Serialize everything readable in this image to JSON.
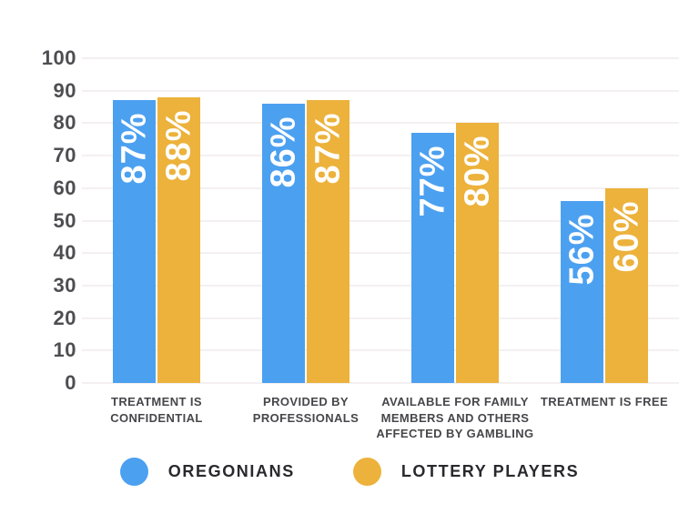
{
  "chart_data": {
    "type": "bar",
    "title": "",
    "xlabel": "",
    "ylabel": "",
    "categories": [
      "TREATMENT IS CONFIDENTIAL",
      "PROVIDED BY PROFESSIONALS",
      "AVAILABLE FOR FAMILY MEMBERS AND OTHERS AFFECTED BY GAMBLING",
      "TREATMENT IS FREE"
    ],
    "series": [
      {
        "name": "OREGONIANS",
        "color": "#4CA0F0",
        "values": [
          87,
          86,
          77,
          56
        ]
      },
      {
        "name": "LOTTERY PLAYERS",
        "color": "#ECB23C",
        "values": [
          88,
          87,
          80,
          60
        ]
      }
    ],
    "bar_labels": [
      [
        "87%",
        "88%"
      ],
      [
        "86%",
        "87%"
      ],
      [
        "77%",
        "80%"
      ],
      [
        "56%",
        "60%"
      ]
    ],
    "value_suffix": "%",
    "ylim": [
      0,
      100
    ],
    "yticks": [
      "0",
      "10",
      "20",
      "30",
      "40",
      "50",
      "60",
      "70",
      "80",
      "90",
      "100"
    ],
    "grid": true,
    "legend_position": "bottom"
  },
  "style": {
    "background": "#ffffff",
    "grid_color": "#f4f0f1",
    "axis_tick_color": "#4e4e52",
    "category_label_color": "#47474b",
    "legend_text_color": "#29292d",
    "bar_value_label_color": "#ffffff",
    "series_blue": "#4CA0F0",
    "series_yellow": "#ECB23C"
  }
}
